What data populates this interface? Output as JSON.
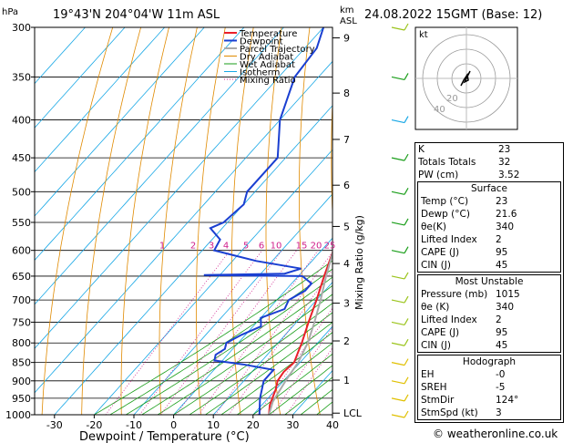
{
  "header": {
    "location": "19°43'N 204°04'W 11m ASL",
    "datetime": "24.08.2022 15GMT (Base: 12)",
    "hpa_label": "hPa",
    "km_label": "km",
    "asl_label": "ASL"
  },
  "chart_data": {
    "type": "line",
    "xlabel": "Dewpoint / Temperature (°C)",
    "ylabel_right": "Mixing Ratio (g/kg)",
    "xlim": [
      -35,
      40
    ],
    "ylim": [
      1000,
      300
    ],
    "yscale": "log",
    "x_ticks": [
      -30,
      -20,
      -10,
      0,
      10,
      20,
      30,
      40
    ],
    "pressure_ticks": [
      300,
      350,
      400,
      450,
      500,
      550,
      600,
      650,
      700,
      750,
      800,
      850,
      900,
      950,
      1000
    ],
    "km_ticks": [
      {
        "label": "9",
        "p": 310
      },
      {
        "label": "8",
        "p": 368
      },
      {
        "label": "7",
        "p": 425
      },
      {
        "label": "6",
        "p": 490
      },
      {
        "label": "5",
        "p": 557
      },
      {
        "label": "4",
        "p": 625
      },
      {
        "label": "3",
        "p": 707
      },
      {
        "label": "2",
        "p": 795
      },
      {
        "label": "1",
        "p": 898
      },
      {
        "label": "LCL",
        "p": 995
      }
    ],
    "mixing_ratio_labels": [
      "1",
      "2",
      "3",
      "4",
      "5",
      "6",
      "10",
      "15",
      "20",
      "25"
    ],
    "legend": [
      "Temperature",
      "Dewpoint",
      "Parcel Trajectory",
      "Dry Adiabat",
      "Wet Adiabat",
      "Isotherm",
      "Mixing Ratio"
    ],
    "legend_position": "top-left",
    "series": [
      {
        "name": "Temperature",
        "color": "#e8202a",
        "points": [
          [
            1000,
            24
          ],
          [
            970,
            22
          ],
          [
            925,
            20
          ],
          [
            900,
            18.5
          ],
          [
            875,
            18
          ],
          [
            850,
            18.5
          ],
          [
            820,
            17
          ],
          [
            800,
            16
          ],
          [
            750,
            13
          ],
          [
            700,
            10
          ],
          [
            650,
            6.5
          ],
          [
            600,
            3
          ],
          [
            575,
            1.5
          ],
          [
            550,
            -1
          ],
          [
            500,
            -5.5
          ],
          [
            450,
            -10.5
          ],
          [
            400,
            -16.5
          ],
          [
            350,
            -23.5
          ],
          [
            300,
            -32
          ]
        ]
      },
      {
        "name": "Dewpoint",
        "color": "#1a3fd1",
        "points": [
          [
            1000,
            21.6
          ],
          [
            950,
            18
          ],
          [
            900,
            15
          ],
          [
            870,
            15
          ],
          [
            855,
            6
          ],
          [
            845,
            -2
          ],
          [
            830,
            -3
          ],
          [
            815,
            -2
          ],
          [
            800,
            -3
          ],
          [
            780,
            -1
          ],
          [
            760,
            2
          ],
          [
            740,
            0
          ],
          [
            720,
            4
          ],
          [
            700,
            3
          ],
          [
            680,
            5
          ],
          [
            665,
            5
          ],
          [
            650,
            1
          ],
          [
            648,
            -24
          ],
          [
            645,
            -4
          ],
          [
            635,
            -1
          ],
          [
            620,
            -14
          ],
          [
            600,
            -27
          ],
          [
            580,
            -28
          ],
          [
            560,
            -33
          ],
          [
            550,
            -31
          ],
          [
            520,
            -30
          ],
          [
            500,
            -32
          ],
          [
            450,
            -32
          ],
          [
            400,
            -40
          ],
          [
            350,
            -46
          ],
          [
            320,
            -47
          ],
          [
            300,
            -50
          ]
        ]
      },
      {
        "name": "Parcel Trajectory",
        "color": "#aaaaaa",
        "points": [
          [
            1000,
            24
          ],
          [
            960,
            22
          ],
          [
            900,
            20.5
          ],
          [
            850,
            19.5
          ],
          [
            800,
            17.5
          ],
          [
            750,
            14.5
          ],
          [
            700,
            11
          ],
          [
            650,
            7
          ],
          [
            600,
            3
          ],
          [
            550,
            -2
          ],
          [
            500,
            -7
          ],
          [
            450,
            -13
          ],
          [
            400,
            -20
          ],
          [
            350,
            -28
          ],
          [
            300,
            -37
          ]
        ]
      }
    ]
  },
  "hodograph": {
    "label": "kt",
    "ring_labels": [
      "20",
      "40"
    ]
  },
  "indices": {
    "rows": [
      {
        "label": "K",
        "value": "23"
      },
      {
        "label": "Totals Totals",
        "value": "32"
      },
      {
        "label": "PW (cm)",
        "value": "3.52"
      }
    ]
  },
  "surface": {
    "title": "Surface",
    "rows": [
      {
        "label": "Temp (°C)",
        "value": "23"
      },
      {
        "label": "Dewp (°C)",
        "value": "21.6"
      },
      {
        "label": "θe(K)",
        "value": "340"
      },
      {
        "label": "Lifted Index",
        "value": "2"
      },
      {
        "label": "CAPE (J)",
        "value": "95"
      },
      {
        "label": "CIN (J)",
        "value": "45"
      }
    ]
  },
  "most_unstable": {
    "title": "Most Unstable",
    "rows": [
      {
        "label": "Pressure (mb)",
        "value": "1015"
      },
      {
        "label": "θe (K)",
        "value": "340"
      },
      {
        "label": "Lifted Index",
        "value": "2"
      },
      {
        "label": "CAPE (J)",
        "value": "95"
      },
      {
        "label": "CIN (J)",
        "value": "45"
      }
    ]
  },
  "hodo_table": {
    "title": "Hodograph",
    "rows": [
      {
        "label": "EH",
        "value": "-0"
      },
      {
        "label": "SREH",
        "value": "-5"
      },
      {
        "label": "StmDir",
        "value": "124°"
      },
      {
        "label": "StmSpd (kt)",
        "value": "3"
      }
    ]
  },
  "footer": "© weatheronline.co.uk",
  "colors": {
    "temperature": "#e8202a",
    "dewpoint": "#1a3fd1",
    "parcel": "#aaaaaa",
    "dry_adiabat": "#e08a00",
    "wet_adiabat": "#1a9e1a",
    "isotherm": "#19a8e6",
    "mixing_ratio": "#d0208c"
  }
}
